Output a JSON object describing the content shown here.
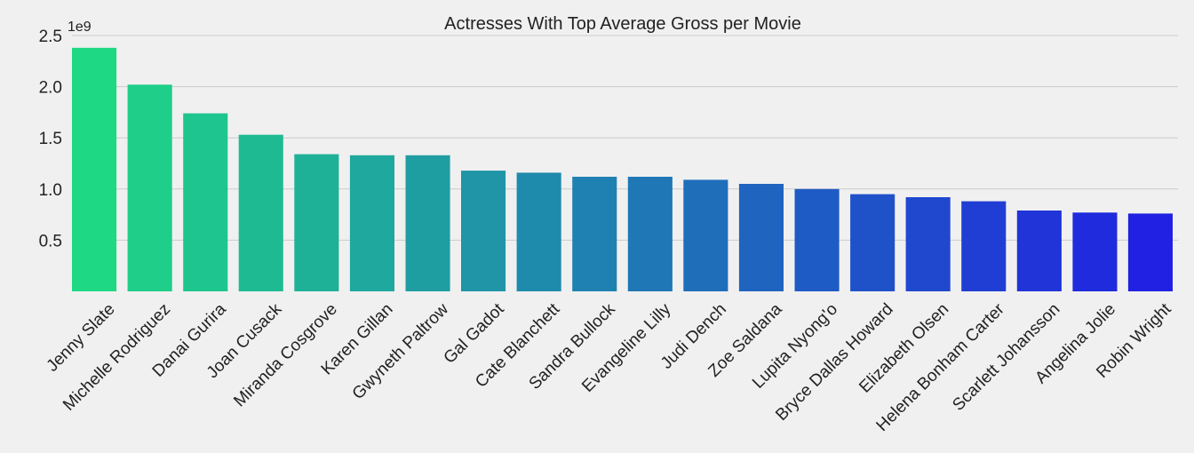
{
  "chart_data": {
    "type": "bar",
    "title": "Actresses With Top Average Gross per Movie",
    "xlabel": "",
    "ylabel": "",
    "y_offset_label": "1e9",
    "ylim": [
      0,
      2.5
    ],
    "y_ticks": [
      "0.5",
      "1.0",
      "1.5",
      "2.0",
      "2.5"
    ],
    "grid": true,
    "categories": [
      "Jenny Slate",
      "Michelle Rodriguez",
      "Danai Gurira",
      "Joan Cusack",
      "Miranda Cosgrove",
      "Karen Gillan",
      "Gwyneth Paltrow",
      "Gal Gadot",
      "Cate Blanchett",
      "Sandra Bullock",
      "Evangeline Lilly",
      "Judi Dench",
      "Zoe Saldana",
      "Lupita Nyong'o",
      "Bryce Dallas Howard",
      "Elizabeth Olsen",
      "Helena Bonham Carter",
      "Scarlett Johansson",
      "Angelina Jolie",
      "Robin Wright"
    ],
    "values": [
      2.38,
      2.02,
      1.74,
      1.53,
      1.34,
      1.33,
      1.33,
      1.18,
      1.16,
      1.12,
      1.12,
      1.09,
      1.05,
      1.0,
      0.95,
      0.92,
      0.88,
      0.79,
      0.77,
      0.76
    ],
    "colors": {
      "start": "#1ed884",
      "end": "#2021e2",
      "background": "#f0f0f0",
      "grid": "#cbcbcb",
      "text": "#222222"
    }
  }
}
